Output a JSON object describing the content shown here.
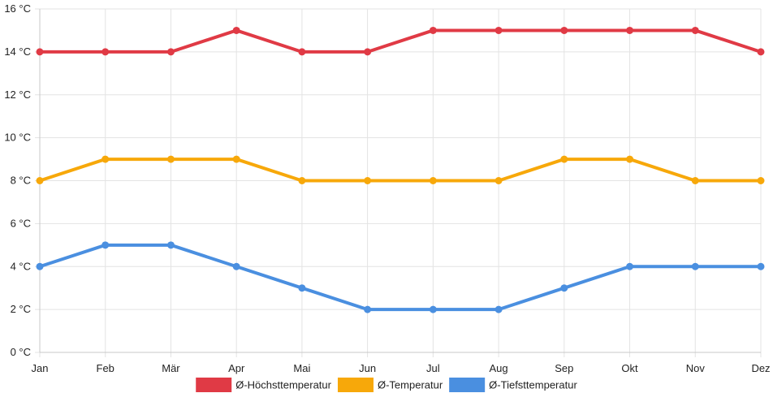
{
  "chart_data": {
    "type": "line",
    "title": "",
    "xlabel": "",
    "ylabel": "",
    "categories": [
      "Jan",
      "Feb",
      "Mär",
      "Apr",
      "Mai",
      "Jun",
      "Jul",
      "Aug",
      "Sep",
      "Okt",
      "Nov",
      "Dez"
    ],
    "ylim": [
      0,
      16
    ],
    "yticks": [
      0,
      2,
      4,
      6,
      8,
      10,
      12,
      14,
      16
    ],
    "y_unit": " °C",
    "grid": true,
    "legend_position": "bottom",
    "series": [
      {
        "name": "Ø-Höchsttemperatur",
        "color": "#e03a45",
        "values": [
          14,
          14,
          14,
          15,
          14,
          14,
          15,
          15,
          15,
          15,
          15,
          14
        ]
      },
      {
        "name": "Ø-Temperatur",
        "color": "#f7a80a",
        "values": [
          8,
          9,
          9,
          9,
          8,
          8,
          8,
          8,
          9,
          9,
          8,
          8
        ]
      },
      {
        "name": "Ø-Tiefsttemperatur",
        "color": "#4a8fe0",
        "values": [
          4,
          5,
          5,
          4,
          3,
          2,
          2,
          2,
          3,
          4,
          4,
          4
        ]
      }
    ]
  }
}
